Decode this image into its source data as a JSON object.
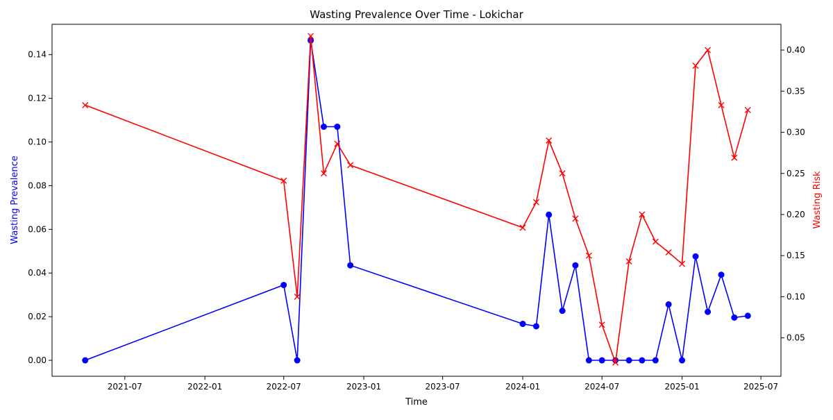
{
  "chart_data": {
    "type": "line",
    "title": "Wasting Prevalence Over Time - Lokichar",
    "xlabel": "Time",
    "ylabel_left": "Wasting Prevalence",
    "ylabel_right": "Wasting Risk",
    "x_ticks": [
      "2021-07",
      "2022-01",
      "2022-07",
      "2023-01",
      "2023-07",
      "2024-01",
      "2024-07",
      "2025-01",
      "2025-07"
    ],
    "y_left_ticks": [
      "0.00",
      "0.02",
      "0.04",
      "0.06",
      "0.08",
      "0.10",
      "0.12",
      "0.14"
    ],
    "y_right_ticks": [
      "0.05",
      "0.10",
      "0.15",
      "0.20",
      "0.25",
      "0.30",
      "0.35",
      "0.40"
    ],
    "ylim_left": [
      -0.0073,
      0.1539
    ],
    "ylim_right": [
      0.0033,
      0.4313
    ],
    "grid": false,
    "legend": "none",
    "colors": {
      "prevalence": "#0000ff",
      "risk": "#ff0000"
    },
    "x": [
      "2021-04-01",
      "2022-07-01",
      "2022-08-01",
      "2022-09-01",
      "2022-10-01",
      "2022-11-01",
      "2022-12-01",
      "2024-01-01",
      "2024-02-01",
      "2024-03-01",
      "2024-04-01",
      "2024-05-01",
      "2024-06-01",
      "2024-07-01",
      "2024-08-01",
      "2024-09-01",
      "2024-10-01",
      "2024-11-01",
      "2024-12-01",
      "2025-01-01",
      "2025-02-01",
      "2025-03-01",
      "2025-04-01",
      "2025-05-01",
      "2025-06-01"
    ],
    "series": [
      {
        "axis": "left",
        "marker": "circle",
        "values": [
          0.0,
          0.0345,
          0.0,
          0.1465,
          0.107,
          0.107,
          0.0435,
          0.0167,
          0.0156,
          0.0667,
          0.0227,
          0.0435,
          0.0,
          0.0,
          0.0,
          0.0,
          0.0,
          0.0,
          0.0256,
          0.0,
          0.0476,
          0.0222,
          0.0392,
          0.0196,
          0.0204
        ]
      },
      {
        "axis": "right",
        "marker": "x",
        "values": [
          0.333,
          0.241,
          0.1,
          0.417,
          0.25,
          0.286,
          0.26,
          0.184,
          0.215,
          0.29,
          0.25,
          0.195,
          0.15,
          0.066,
          0.02,
          0.143,
          0.2,
          0.167,
          0.154,
          0.14,
          0.381,
          0.4,
          0.333,
          0.269,
          0.327
        ]
      }
    ]
  }
}
